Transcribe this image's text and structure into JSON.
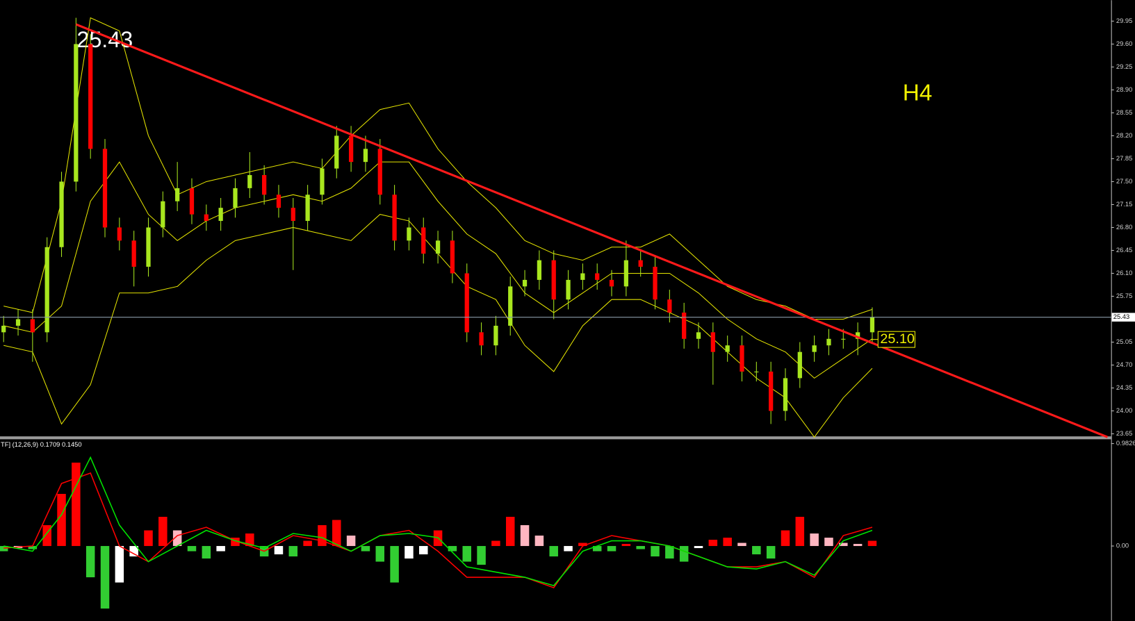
{
  "chart_data": {
    "type": "candlestick",
    "annotation": "25.43",
    "timeframe": "H4",
    "level_label": "25.10",
    "last_price": 25.43,
    "ylim": [
      23.6,
      30.27
    ],
    "yticks": [
      23.65,
      {
        "value": 24,
        "label": "24.00"
      },
      24.35,
      {
        "value": 24.7,
        "label": "24.70"
      },
      25.05,
      25.75,
      {
        "value": 26.1,
        "label": "26.10"
      },
      26.45,
      {
        "value": 26.8,
        "label": "26.80"
      },
      27.15,
      {
        "value": 27.5,
        "label": "27.50"
      },
      27.85,
      {
        "value": 28.2,
        "label": "28.20"
      },
      28.55,
      {
        "value": 28.9,
        "label": "28.90"
      },
      29.25,
      {
        "value": 29.6,
        "label": "29.60"
      },
      29.95
    ],
    "candles": {
      "up_color": "#a8e61e",
      "down_color": "#ff0000",
      "open": [
        25.2,
        25.3,
        25.4,
        25.2,
        26.5,
        27.5,
        29.6,
        28.0,
        26.8,
        26.6,
        26.2,
        26.8,
        27.2,
        27.4,
        27.0,
        26.9,
        27.1,
        27.4,
        27.6,
        27.3,
        27.1,
        26.9,
        27.3,
        27.7,
        28.2,
        27.8,
        28.0,
        27.3,
        26.6,
        26.8,
        26.4,
        26.6,
        26.1,
        25.2,
        25.0,
        25.3,
        25.9,
        26.0,
        26.3,
        25.7,
        26.0,
        26.1,
        26.0,
        25.9,
        26.3,
        26.2,
        25.7,
        25.5,
        25.1,
        25.2,
        24.9,
        25.0,
        24.6,
        24.6,
        24.0,
        24.5,
        24.9,
        25.0,
        25.1,
        25.1,
        25.2
      ],
      "high": [
        25.45,
        25.55,
        25.55,
        26.65,
        27.65,
        30.0,
        29.75,
        28.15,
        26.95,
        26.75,
        26.95,
        27.35,
        27.8,
        27.55,
        27.15,
        27.25,
        27.55,
        27.95,
        27.75,
        27.45,
        27.25,
        27.45,
        27.85,
        28.35,
        28.35,
        28.2,
        28.15,
        27.45,
        26.95,
        26.95,
        26.75,
        26.75,
        26.25,
        25.35,
        25.45,
        26.05,
        26.15,
        26.45,
        26.45,
        26.15,
        26.25,
        26.25,
        26.15,
        26.6,
        26.45,
        26.35,
        25.85,
        25.65,
        25.35,
        25.35,
        25.15,
        25.15,
        24.75,
        24.75,
        24.65,
        25.05,
        25.15,
        25.25,
        25.25,
        25.35,
        25.58
      ],
      "low": [
        25.05,
        25.15,
        24.75,
        25.05,
        26.35,
        27.35,
        27.85,
        26.65,
        26.45,
        25.9,
        26.05,
        26.65,
        27.05,
        26.85,
        26.75,
        26.75,
        26.95,
        27.25,
        27.15,
        26.95,
        26.15,
        26.75,
        27.15,
        27.55,
        27.65,
        27.65,
        27.15,
        26.45,
        26.45,
        26.25,
        26.25,
        25.95,
        25.05,
        24.85,
        24.85,
        25.15,
        25.75,
        25.85,
        25.4,
        25.55,
        25.85,
        25.85,
        25.75,
        25.75,
        26.05,
        25.55,
        25.35,
        24.95,
        24.95,
        24.4,
        24.75,
        24.45,
        24.45,
        23.8,
        23.85,
        24.35,
        24.75,
        24.85,
        24.95,
        24.85,
        25.05
      ],
      "close": [
        25.3,
        25.4,
        25.2,
        26.5,
        27.5,
        29.6,
        28.0,
        26.8,
        26.6,
        26.2,
        26.8,
        27.2,
        27.4,
        27.0,
        26.9,
        27.1,
        27.4,
        27.6,
        27.3,
        27.1,
        26.9,
        27.3,
        27.7,
        28.2,
        27.8,
        28.0,
        27.3,
        26.6,
        26.8,
        26.4,
        26.6,
        26.1,
        25.2,
        25.0,
        25.3,
        25.9,
        26.0,
        26.3,
        25.7,
        26.0,
        26.1,
        26.0,
        25.9,
        26.3,
        26.2,
        25.7,
        25.5,
        25.1,
        25.2,
        24.9,
        25.0,
        24.6,
        24.6,
        24.0,
        24.5,
        24.9,
        25.0,
        25.1,
        25.1,
        25.2,
        25.43
      ]
    },
    "bands": [
      {
        "color": "#e6e600",
        "values": [
          25.6,
          25.5,
          27.2,
          30.0,
          29.8,
          28.2,
          27.3,
          27.5,
          27.6,
          27.7,
          27.8,
          27.7,
          28.2,
          28.6,
          28.7,
          28.0,
          27.5,
          27.1,
          26.6,
          26.4,
          26.3,
          26.5,
          26.5,
          26.7,
          26.3,
          25.9,
          25.7,
          25.6,
          25.4,
          25.4,
          25.55
        ]
      },
      {
        "color": "#e6e600",
        "values": [
          25.3,
          25.2,
          25.6,
          27.2,
          27.8,
          27.0,
          26.6,
          26.9,
          27.1,
          27.2,
          27.3,
          27.2,
          27.4,
          27.8,
          27.8,
          27.2,
          26.7,
          26.4,
          25.8,
          25.5,
          25.8,
          26.1,
          26.1,
          26.1,
          25.8,
          25.4,
          25.1,
          24.9,
          24.5,
          24.8,
          25.1
        ]
      },
      {
        "color": "#e6e600",
        "values": [
          25.0,
          24.9,
          23.8,
          24.4,
          25.8,
          25.8,
          25.9,
          26.3,
          26.6,
          26.7,
          26.8,
          26.7,
          26.6,
          27.0,
          26.9,
          26.4,
          25.9,
          25.7,
          25.0,
          24.6,
          25.3,
          25.7,
          25.7,
          25.5,
          25.3,
          24.9,
          24.5,
          24.2,
          23.6,
          24.2,
          24.65
        ]
      }
    ],
    "trendline": {
      "color": "#ff1a1a",
      "points": [
        [
          5,
          29.9
        ],
        [
          76.25,
          23.6
        ]
      ]
    },
    "indicator": {
      "type": "histogram",
      "title": "TF] (12,26,9) 0.1709 0.1450",
      "ylim": [
        -0.718,
        1.024
      ],
      "yticks": [
        0.9826,
        {
          "value": 0,
          "label": "0.00"
        }
      ],
      "colors": {
        "rising_positive": "#ff0000",
        "falling_positive": "#ffb6c1",
        "falling_negative": "#32cd32",
        "rising_negative": "#ffffff"
      },
      "values": [
        -0.05,
        -0.02,
        -0.03,
        0.2,
        0.5,
        0.8,
        -0.3,
        -0.6,
        -0.35,
        -0.1,
        0.15,
        0.28,
        0.15,
        -0.05,
        -0.12,
        -0.05,
        0.08,
        0.12,
        -0.1,
        -0.08,
        -0.1,
        0.05,
        0.2,
        0.25,
        0.1,
        -0.05,
        -0.15,
        -0.35,
        -0.12,
        -0.08,
        0.15,
        -0.05,
        -0.15,
        -0.18,
        0.05,
        0.28,
        0.2,
        0.1,
        -0.1,
        -0.05,
        0.03,
        -0.05,
        -0.05,
        0.02,
        -0.03,
        -0.1,
        -0.12,
        -0.15,
        -0.02,
        0.06,
        0.08,
        0.03,
        -0.08,
        -0.12,
        0.15,
        0.28,
        0.12,
        0.08,
        0.03,
        0.02,
        0.05
      ],
      "series": [
        {
          "color": "#ff0000",
          "values": [
            -0.02,
            0.0,
            0.6,
            0.7,
            0.0,
            -0.15,
            0.1,
            0.18,
            0.05,
            -0.05,
            0.1,
            0.05,
            -0.05,
            0.1,
            0.15,
            -0.05,
            -0.3,
            -0.3,
            -0.3,
            -0.4,
            0.0,
            0.1,
            0.05,
            0.0,
            -0.1,
            -0.2,
            -0.2,
            -0.15,
            -0.3,
            0.1,
            0.18
          ]
        },
        {
          "color": "#00e600",
          "values": [
            0.0,
            -0.05,
            0.3,
            0.85,
            0.2,
            -0.15,
            0.0,
            0.15,
            0.05,
            -0.02,
            0.12,
            0.08,
            -0.05,
            0.1,
            0.12,
            0.08,
            -0.2,
            -0.25,
            -0.3,
            -0.38,
            -0.05,
            0.05,
            0.05,
            0.0,
            -0.1,
            -0.2,
            -0.22,
            -0.15,
            -0.28,
            0.05,
            0.15
          ]
        }
      ]
    }
  }
}
